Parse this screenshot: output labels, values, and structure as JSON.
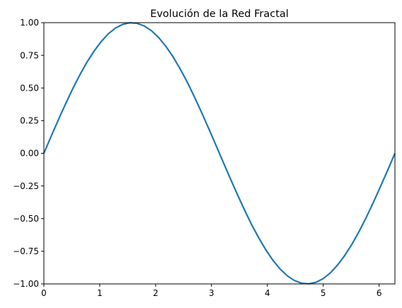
{
  "chart_data": {
    "type": "line",
    "title": "Evolución de la Red Fractal",
    "xlabel": "",
    "ylabel": "",
    "xlim": [
      0,
      6.283
    ],
    "ylim": [
      -1.0,
      1.0
    ],
    "grid": false,
    "x_ticks": [
      0,
      1,
      2,
      3,
      4,
      5,
      6
    ],
    "x_tick_labels": [
      "0",
      "1",
      "2",
      "3",
      "4",
      "5",
      "6"
    ],
    "y_ticks": [
      1.0,
      0.75,
      0.5,
      0.25,
      0.0,
      -0.25,
      -0.5,
      -0.75,
      -1.0
    ],
    "y_tick_labels": [
      "1.00",
      "0.75",
      "0.50",
      "0.25",
      "0.00",
      "−0.25",
      "−0.50",
      "−0.75",
      "−1.00"
    ],
    "series": [
      {
        "color": "#1f77b4",
        "x": [
          0.0,
          0.128,
          0.256,
          0.385,
          0.513,
          0.641,
          0.769,
          0.898,
          1.026,
          1.154,
          1.282,
          1.411,
          1.539,
          1.667,
          1.795,
          1.923,
          2.052,
          2.18,
          2.308,
          2.436,
          2.565,
          2.693,
          2.821,
          2.949,
          3.077,
          3.206,
          3.334,
          3.462,
          3.59,
          3.718,
          3.847,
          3.975,
          4.103,
          4.231,
          4.36,
          4.488,
          4.616,
          4.744,
          4.872,
          5.001,
          5.129,
          5.257,
          5.385,
          5.514,
          5.642,
          5.77,
          5.898,
          6.026,
          6.155,
          6.283
        ],
        "y": [
          0.0,
          0.128,
          0.253,
          0.375,
          0.491,
          0.598,
          0.696,
          0.782,
          0.855,
          0.915,
          0.959,
          0.987,
          0.999,
          0.995,
          0.975,
          0.939,
          0.887,
          0.821,
          0.741,
          0.648,
          0.546,
          0.433,
          0.314,
          0.191,
          0.064,
          -0.064,
          -0.191,
          -0.314,
          -0.433,
          -0.546,
          -0.648,
          -0.741,
          -0.821,
          -0.887,
          -0.939,
          -0.975,
          -0.995,
          -0.999,
          -0.987,
          -0.959,
          -0.915,
          -0.855,
          -0.782,
          -0.696,
          -0.598,
          -0.491,
          -0.375,
          -0.253,
          -0.128,
          0.0
        ]
      }
    ]
  }
}
